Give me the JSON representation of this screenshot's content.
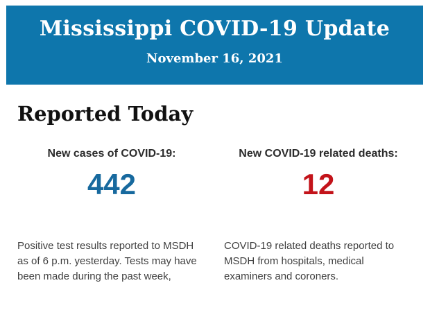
{
  "header": {
    "title": "Mississippi COVID-19 Update",
    "date": "November 16, 2021",
    "background_color": "#0e76ac",
    "text_color": "#ffffff"
  },
  "section_title": "Reported Today",
  "stats": {
    "cases": {
      "label": "New cases of COVID-19:",
      "value": "442",
      "value_color": "#17699e",
      "description": "Positive test results reported to MSDH as of 6 p.m. yesterday. Tests may have been made during the past week,"
    },
    "deaths": {
      "label": "New COVID-19 related deaths:",
      "value": "12",
      "value_color": "#c3131a",
      "description": "COVID-19 related deaths reported to MSDH from hospitals, medical examiners and coroners."
    }
  }
}
